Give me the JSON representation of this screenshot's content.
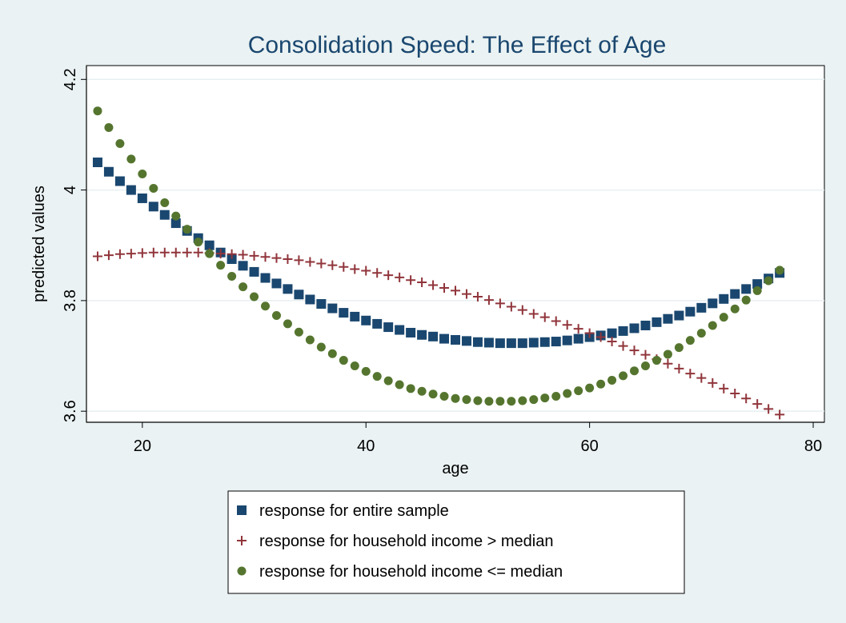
{
  "chart_data": {
    "type": "scatter",
    "title": "Consolidation Speed: The Effect of Age",
    "xlabel": "age",
    "ylabel": "predicted values",
    "xlim": [
      15,
      81
    ],
    "ylim": [
      3.58,
      4.225
    ],
    "x_ticks": [
      20,
      40,
      60,
      80
    ],
    "x_tick_labels": [
      "20",
      "40",
      "60",
      "80"
    ],
    "y_ticks": [
      3.6,
      3.8,
      4.0,
      4.2
    ],
    "y_tick_labels": [
      "3.6",
      "3.8",
      "4",
      "4.2"
    ],
    "grid": true,
    "legend_position": "bottom",
    "series": [
      {
        "name": "response for entire sample",
        "marker": "square",
        "color": "#1a476f",
        "x": [
          16,
          17,
          18,
          19,
          20,
          21,
          22,
          23,
          24,
          25,
          26,
          27,
          28,
          29,
          30,
          31,
          32,
          33,
          34,
          35,
          36,
          37,
          38,
          39,
          40,
          41,
          42,
          43,
          44,
          45,
          46,
          47,
          48,
          49,
          50,
          51,
          52,
          53,
          54,
          55,
          56,
          57,
          58,
          59,
          60,
          61,
          62,
          63,
          64,
          65,
          66,
          67,
          68,
          69,
          70,
          71,
          72,
          73,
          74,
          75,
          76,
          77
        ],
        "y": [
          4.05,
          4.033,
          4.016,
          4.0,
          3.985,
          3.97,
          3.955,
          3.94,
          3.926,
          3.913,
          3.9,
          3.887,
          3.875,
          3.863,
          3.852,
          3.841,
          3.831,
          3.821,
          3.811,
          3.802,
          3.794,
          3.786,
          3.778,
          3.771,
          3.764,
          3.758,
          3.752,
          3.747,
          3.742,
          3.738,
          3.735,
          3.731,
          3.729,
          3.727,
          3.725,
          3.724,
          3.723,
          3.723,
          3.723,
          3.724,
          3.725,
          3.726,
          3.728,
          3.731,
          3.734,
          3.737,
          3.741,
          3.745,
          3.75,
          3.755,
          3.761,
          3.767,
          3.773,
          3.78,
          3.787,
          3.795,
          3.803,
          3.812,
          3.821,
          3.83,
          3.84,
          3.85
        ]
      },
      {
        "name": "response for household income > median",
        "marker": "plus",
        "color": "#90353b",
        "x": [
          16,
          17,
          18,
          19,
          20,
          21,
          22,
          23,
          24,
          25,
          26,
          27,
          28,
          29,
          30,
          31,
          32,
          33,
          34,
          35,
          36,
          37,
          38,
          39,
          40,
          41,
          42,
          43,
          44,
          45,
          46,
          47,
          48,
          49,
          50,
          51,
          52,
          53,
          54,
          55,
          56,
          57,
          58,
          59,
          60,
          61,
          62,
          63,
          64,
          65,
          66,
          67,
          68,
          69,
          70,
          71,
          72,
          73,
          74,
          75,
          76,
          77
        ],
        "y": [
          3.88,
          3.882,
          3.884,
          3.885,
          3.886,
          3.887,
          3.887,
          3.887,
          3.887,
          3.887,
          3.886,
          3.885,
          3.884,
          3.883,
          3.881,
          3.879,
          3.877,
          3.875,
          3.873,
          3.87,
          3.867,
          3.864,
          3.861,
          3.857,
          3.854,
          3.85,
          3.846,
          3.842,
          3.837,
          3.833,
          3.828,
          3.823,
          3.818,
          3.812,
          3.807,
          3.801,
          3.795,
          3.789,
          3.783,
          3.776,
          3.77,
          3.763,
          3.756,
          3.749,
          3.741,
          3.734,
          3.726,
          3.718,
          3.71,
          3.702,
          3.694,
          3.686,
          3.677,
          3.668,
          3.66,
          3.651,
          3.641,
          3.632,
          3.623,
          3.613,
          3.604,
          3.594
        ]
      },
      {
        "name": "response for household income <= median",
        "marker": "circle",
        "color": "#55752f",
        "x": [
          16,
          17,
          18,
          19,
          20,
          21,
          22,
          23,
          24,
          25,
          26,
          27,
          28,
          29,
          30,
          31,
          32,
          33,
          34,
          35,
          36,
          37,
          38,
          39,
          40,
          41,
          42,
          43,
          44,
          45,
          46,
          47,
          48,
          49,
          50,
          51,
          52,
          53,
          54,
          55,
          56,
          57,
          58,
          59,
          60,
          61,
          62,
          63,
          64,
          65,
          66,
          67,
          68,
          69,
          70,
          71,
          72,
          73,
          74,
          75,
          76,
          77
        ],
        "y": [
          4.143,
          4.113,
          4.084,
          4.056,
          4.029,
          4.003,
          3.977,
          3.953,
          3.929,
          3.906,
          3.885,
          3.864,
          3.844,
          3.825,
          3.807,
          3.79,
          3.773,
          3.758,
          3.743,
          3.729,
          3.716,
          3.704,
          3.692,
          3.682,
          3.672,
          3.663,
          3.655,
          3.648,
          3.641,
          3.636,
          3.631,
          3.627,
          3.623,
          3.621,
          3.619,
          3.618,
          3.618,
          3.618,
          3.619,
          3.621,
          3.624,
          3.627,
          3.632,
          3.637,
          3.642,
          3.649,
          3.656,
          3.664,
          3.673,
          3.682,
          3.692,
          3.703,
          3.715,
          3.728,
          3.741,
          3.755,
          3.77,
          3.785,
          3.801,
          3.818,
          3.836,
          3.855
        ]
      }
    ]
  }
}
